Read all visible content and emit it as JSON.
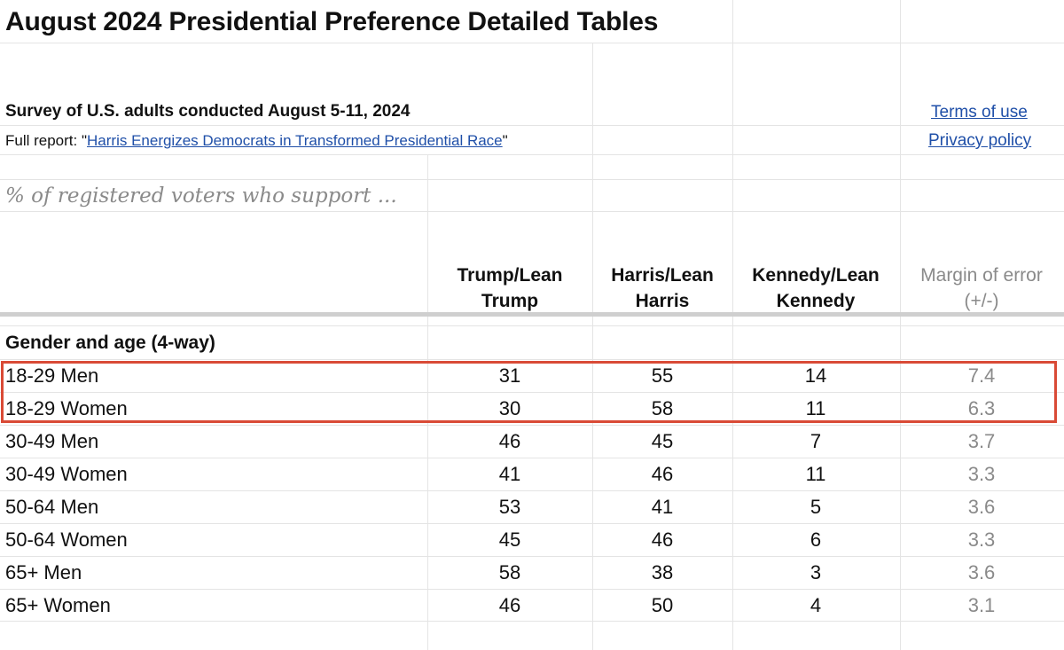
{
  "title": "August 2024 Presidential Preference Detailed Tables",
  "survey": "Survey of U.S. adults conducted August 5-11, 2024",
  "report": {
    "prefix": "Full report: \"",
    "link_text": "Harris Energizes Democrats in Transformed Presidential Race",
    "suffix": "\""
  },
  "links": {
    "terms": "Terms of use",
    "privacy": "Privacy policy"
  },
  "subtitle": "% of registered voters who support ...",
  "columns": {
    "trump": [
      "Trump/Lean",
      "Trump"
    ],
    "harris": [
      "Harris/Lean",
      "Harris"
    ],
    "kennedy": [
      "Kennedy/Lean",
      "Kennedy"
    ],
    "moe": [
      "Margin of error",
      "(+/-)"
    ]
  },
  "group_label": "Gender and age (4-way)",
  "rows": [
    {
      "label": "18-29 Men",
      "trump": "31",
      "harris": "55",
      "kennedy": "14",
      "moe": "7.4"
    },
    {
      "label": "18-29 Women",
      "trump": "30",
      "harris": "58",
      "kennedy": "11",
      "moe": "6.3"
    },
    {
      "label": "30-49 Men",
      "trump": "46",
      "harris": "45",
      "kennedy": "7",
      "moe": "3.7"
    },
    {
      "label": "30-49 Women",
      "trump": "41",
      "harris": "46",
      "kennedy": "11",
      "moe": "3.3"
    },
    {
      "label": "50-64 Men",
      "trump": "53",
      "harris": "41",
      "kennedy": "5",
      "moe": "3.6"
    },
    {
      "label": "50-64 Women",
      "trump": "45",
      "harris": "46",
      "kennedy": "6",
      "moe": "3.3"
    },
    {
      "label": "65+ Men",
      "trump": "58",
      "harris": "38",
      "kennedy": "3",
      "moe": "3.6"
    },
    {
      "label": "65+ Women",
      "trump": "46",
      "harris": "50",
      "kennedy": "4",
      "moe": "3.1"
    }
  ],
  "colors": {
    "highlight": "#d94a36",
    "link": "#1f4fa8",
    "muted": "#8a8a8a"
  }
}
